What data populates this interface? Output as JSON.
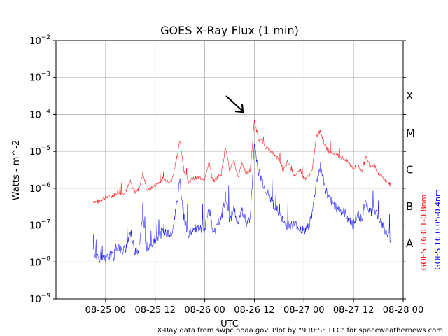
{
  "chart_data": {
    "type": "line",
    "title": "GOES X-Ray Flux (1 min)",
    "xlabel": "UTC",
    "ylabel": "Watts - m^-2",
    "yscale": "log",
    "ylim": [
      1e-09,
      0.01
    ],
    "xlim": [
      "2020-08-24 12:00",
      "2020-08-28 00:00"
    ],
    "grid": true,
    "xticks": [
      "08-25 00",
      "08-25 12",
      "08-26 00",
      "08-26 12",
      "08-27 00",
      "08-27 12",
      "08-28 00"
    ],
    "ytick_exponents": [
      "−9",
      "−8",
      "−7",
      "−6",
      "−5",
      "−4",
      "−3",
      "−2"
    ],
    "flare_classes": [
      "A",
      "B",
      "C",
      "M",
      "X"
    ],
    "annotation": "arrow pointing at peak near 08-26 12",
    "series": [
      {
        "name": "GOES 16 0.1-0.8nm",
        "color": "#ff0000",
        "points": [
          [
            "2020-08-24 21:00",
            4.5e-07
          ],
          [
            "2020-08-24 22:00",
            4.2e-07
          ],
          [
            "2020-08-24 23:00",
            5e-07
          ],
          [
            "2020-08-25 00:00",
            5.5e-07
          ],
          [
            "2020-08-25 01:00",
            6e-07
          ],
          [
            "2020-08-25 02:00",
            6.5e-07
          ],
          [
            "2020-08-25 03:00",
            8e-07
          ],
          [
            "2020-08-25 04:00",
            7e-07
          ],
          [
            "2020-08-25 05:00",
            9e-07
          ],
          [
            "2020-08-25 06:00",
            1.5e-06
          ],
          [
            "2020-08-25 07:00",
            8e-07
          ],
          [
            "2020-08-25 08:00",
            9e-07
          ],
          [
            "2020-08-25 09:00",
            2.5e-06
          ],
          [
            "2020-08-25 10:00",
            9e-07
          ],
          [
            "2020-08-25 11:00",
            1e-06
          ],
          [
            "2020-08-25 12:00",
            1.2e-06
          ],
          [
            "2020-08-25 14:00",
            1.8e-06
          ],
          [
            "2020-08-25 16:00",
            1.5e-06
          ],
          [
            "2020-08-25 18:00",
            1.9e-05
          ],
          [
            "2020-08-25 19:00",
            3e-06
          ],
          [
            "2020-08-25 20:00",
            1.5e-06
          ],
          [
            "2020-08-25 22:00",
            2e-06
          ],
          [
            "2020-08-26 00:00",
            1.8e-06
          ],
          [
            "2020-08-26 01:00",
            5e-06
          ],
          [
            "2020-08-26 02:00",
            1.5e-06
          ],
          [
            "2020-08-26 04:00",
            2.5e-06
          ],
          [
            "2020-08-26 05:00",
            1.3e-05
          ],
          [
            "2020-08-26 06:00",
            3e-06
          ],
          [
            "2020-08-26 07:00",
            6e-06
          ],
          [
            "2020-08-26 08:00",
            2e-06
          ],
          [
            "2020-08-26 09:00",
            5e-06
          ],
          [
            "2020-08-26 10:00",
            2.5e-06
          ],
          [
            "2020-08-26 11:00",
            3e-06
          ],
          [
            "2020-08-26 12:00",
            7e-05
          ],
          [
            "2020-08-26 13:00",
            2e-05
          ],
          [
            "2020-08-26 14:00",
            1.8e-05
          ],
          [
            "2020-08-26 15:00",
            1.2e-05
          ],
          [
            "2020-08-26 16:00",
            1e-05
          ],
          [
            "2020-08-26 18:00",
            6e-06
          ],
          [
            "2020-08-26 19:00",
            3e-06
          ],
          [
            "2020-08-26 20:00",
            5e-06
          ],
          [
            "2020-08-26 22:00",
            2e-06
          ],
          [
            "2020-08-26 23:00",
            3.5e-06
          ],
          [
            "2020-08-27 00:00",
            1.8e-06
          ],
          [
            "2020-08-27 01:00",
            2e-06
          ],
          [
            "2020-08-27 02:00",
            3e-06
          ],
          [
            "2020-08-27 03:00",
            2.5e-05
          ],
          [
            "2020-08-27 04:00",
            3.5e-05
          ],
          [
            "2020-08-27 05:00",
            1.5e-05
          ],
          [
            "2020-08-27 06:00",
            1e-05
          ],
          [
            "2020-08-27 08:00",
            8e-06
          ],
          [
            "2020-08-27 10:00",
            6e-06
          ],
          [
            "2020-08-27 12:00",
            3.5e-06
          ],
          [
            "2020-08-27 13:00",
            4e-06
          ],
          [
            "2020-08-27 14:00",
            3e-06
          ],
          [
            "2020-08-27 15:00",
            7e-06
          ],
          [
            "2020-08-27 16:00",
            4e-06
          ],
          [
            "2020-08-27 17:00",
            4.5e-06
          ],
          [
            "2020-08-27 18:00",
            2.5e-06
          ],
          [
            "2020-08-27 19:00",
            2e-06
          ],
          [
            "2020-08-27 20:00",
            1.5e-06
          ],
          [
            "2020-08-27 21:00",
            1.2e-06
          ]
        ]
      },
      {
        "name": "GOES 16 0.05-0.4nm",
        "color": "#0000ff",
        "points": [
          [
            "2020-08-24 21:00",
            1.8e-08
          ],
          [
            "2020-08-24 22:00",
            1.4e-08
          ],
          [
            "2020-08-24 23:00",
            1.2e-08
          ],
          [
            "2020-08-25 00:00",
            1.1e-08
          ],
          [
            "2020-08-25 01:00",
            1.5e-08
          ],
          [
            "2020-08-25 02:00",
            1.4e-08
          ],
          [
            "2020-08-25 03:00",
            3e-08
          ],
          [
            "2020-08-25 04:00",
            1.8e-08
          ],
          [
            "2020-08-25 05:00",
            2.5e-08
          ],
          [
            "2020-08-25 06:00",
            7e-08
          ],
          [
            "2020-08-25 07:00",
            2e-08
          ],
          [
            "2020-08-25 08:00",
            2.2e-08
          ],
          [
            "2020-08-25 09:00",
            1.5e-07
          ],
          [
            "2020-08-25 10:00",
            2.5e-08
          ],
          [
            "2020-08-25 11:00",
            3e-08
          ],
          [
            "2020-08-25 12:00",
            4e-08
          ],
          [
            "2020-08-25 14:00",
            7e-08
          ],
          [
            "2020-08-25 16:00",
            5e-08
          ],
          [
            "2020-08-25 18:00",
            1.5e-06
          ],
          [
            "2020-08-25 19:00",
            1.5e-07
          ],
          [
            "2020-08-25 20:00",
            6e-08
          ],
          [
            "2020-08-25 22:00",
            8e-08
          ],
          [
            "2020-08-26 00:00",
            7e-08
          ],
          [
            "2020-08-26 01:00",
            3e-07
          ],
          [
            "2020-08-26 02:00",
            6e-08
          ],
          [
            "2020-08-26 04:00",
            1.5e-07
          ],
          [
            "2020-08-26 05:00",
            6e-07
          ],
          [
            "2020-08-26 06:00",
            1.2e-07
          ],
          [
            "2020-08-26 07:00",
            3e-07
          ],
          [
            "2020-08-26 08:00",
            1e-07
          ],
          [
            "2020-08-26 09:00",
            2.5e-07
          ],
          [
            "2020-08-26 10:00",
            1.2e-07
          ],
          [
            "2020-08-26 11:00",
            1.5e-07
          ],
          [
            "2020-08-26 12:00",
            1.6e-05
          ],
          [
            "2020-08-26 13:00",
            3e-06
          ],
          [
            "2020-08-26 14:00",
            1.5e-06
          ],
          [
            "2020-08-26 15:00",
            8e-07
          ],
          [
            "2020-08-26 16:00",
            5e-07
          ],
          [
            "2020-08-26 18:00",
            2e-07
          ],
          [
            "2020-08-26 19:00",
            1.2e-07
          ],
          [
            "2020-08-26 20:00",
            1e-07
          ],
          [
            "2020-08-26 22:00",
            1e-07
          ],
          [
            "2020-08-26 23:00",
            8e-08
          ],
          [
            "2020-08-27 00:00",
            7e-08
          ],
          [
            "2020-08-27 01:00",
            9e-08
          ],
          [
            "2020-08-27 02:00",
            2e-07
          ],
          [
            "2020-08-27 03:00",
            1.5e-06
          ],
          [
            "2020-08-27 04:00",
            4e-06
          ],
          [
            "2020-08-27 05:00",
            1.2e-06
          ],
          [
            "2020-08-27 06:00",
            5e-07
          ],
          [
            "2020-08-27 08:00",
            3e-07
          ],
          [
            "2020-08-27 10:00",
            2e-07
          ],
          [
            "2020-08-27 12:00",
            1e-07
          ],
          [
            "2020-08-27 13:00",
            2e-07
          ],
          [
            "2020-08-27 14:00",
            1.5e-07
          ],
          [
            "2020-08-27 15:00",
            5e-07
          ],
          [
            "2020-08-27 16:00",
            2e-07
          ],
          [
            "2020-08-27 17:00",
            3e-07
          ],
          [
            "2020-08-27 18:00",
            1.5e-07
          ],
          [
            "2020-08-27 19:00",
            1e-07
          ],
          [
            "2020-08-27 20:00",
            6e-08
          ],
          [
            "2020-08-27 21:00",
            4e-08
          ]
        ]
      }
    ]
  },
  "credit": "X-Ray data from swpc.noaa.gov. Plot by \"9 RESE LLC\" for spaceweathernews.com"
}
